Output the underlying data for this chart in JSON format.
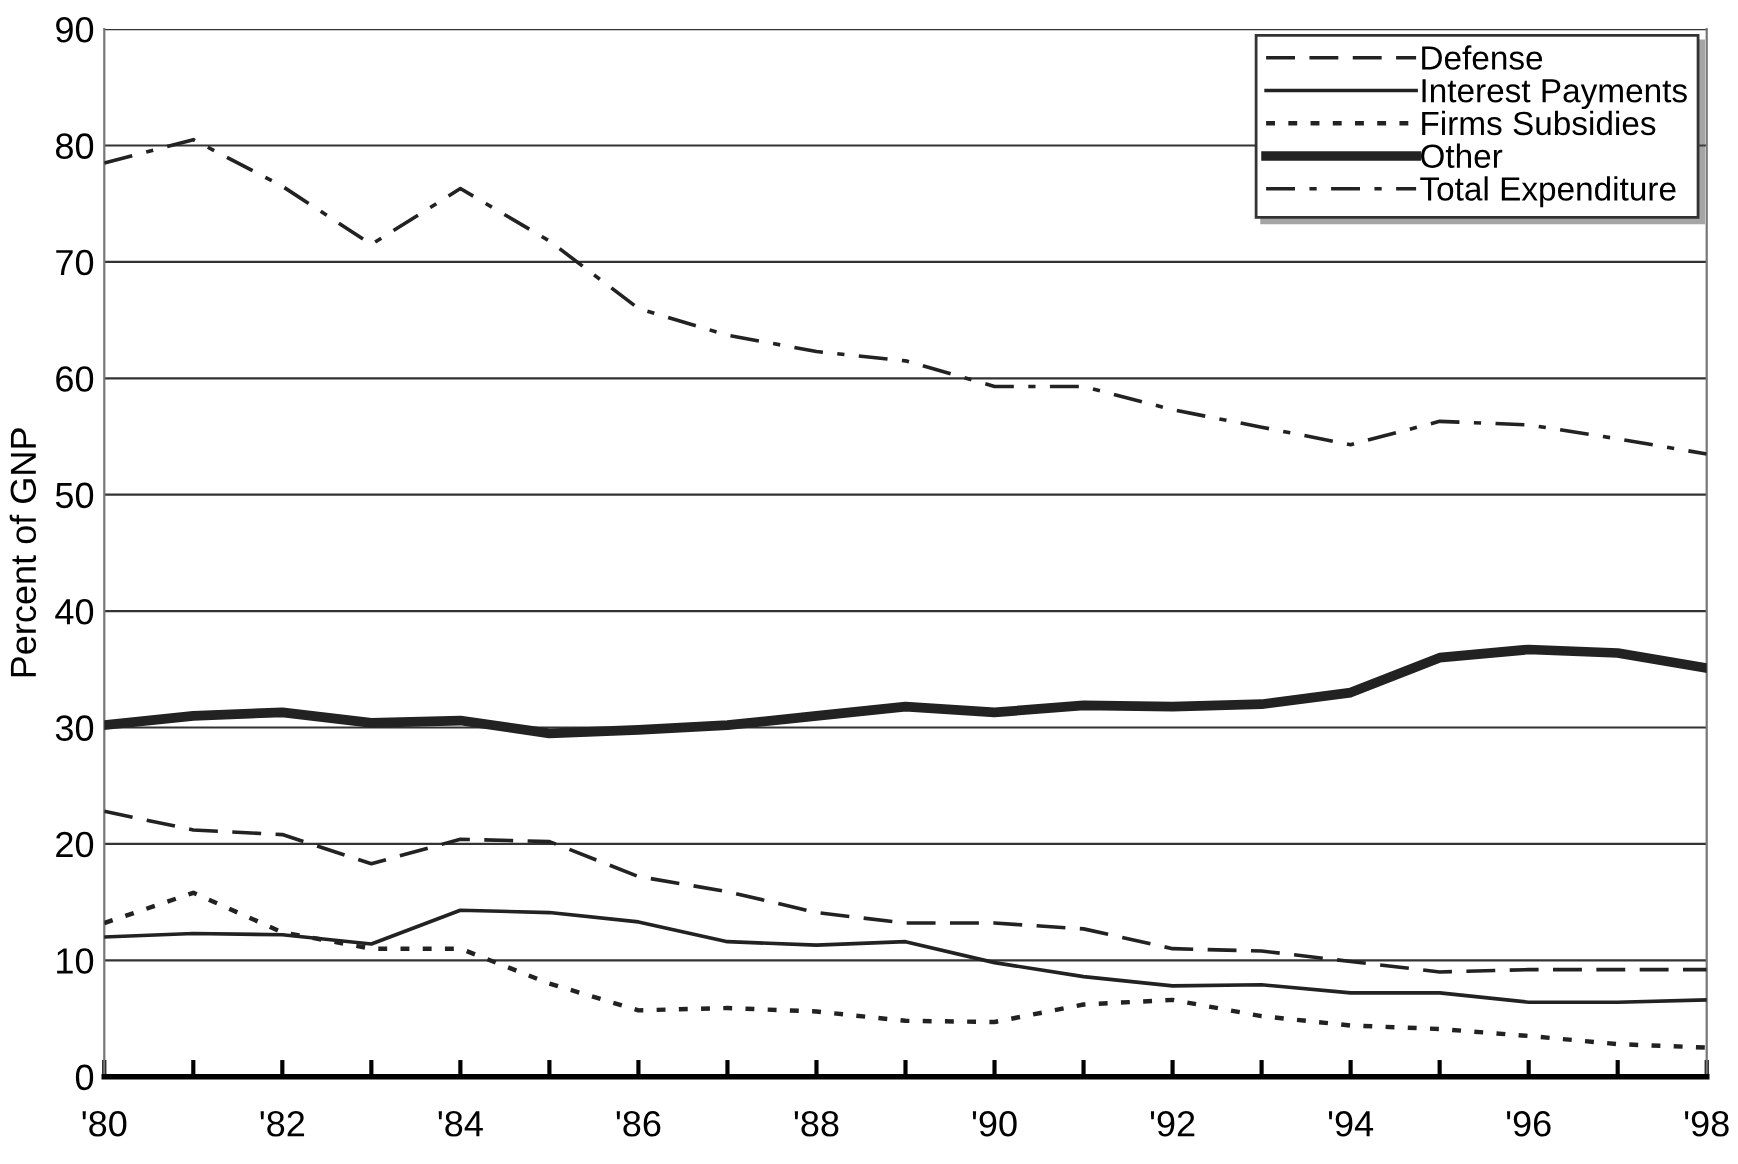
{
  "chart_data": {
    "type": "line",
    "ylabel": "Percent of GNP",
    "x": [
      1980,
      1981,
      1982,
      1983,
      1984,
      1985,
      1986,
      1987,
      1988,
      1989,
      1990,
      1991,
      1992,
      1993,
      1994,
      1995,
      1996,
      1997,
      1998
    ],
    "xlim": [
      1980,
      1998
    ],
    "xticks": [
      {
        "value": 1980,
        "label": "'80"
      },
      {
        "value": 1981,
        "label": null
      },
      {
        "value": 1982,
        "label": "'82"
      },
      {
        "value": 1983,
        "label": null
      },
      {
        "value": 1984,
        "label": "'84"
      },
      {
        "value": 1985,
        "label": null
      },
      {
        "value": 1986,
        "label": "'86"
      },
      {
        "value": 1987,
        "label": null
      },
      {
        "value": 1988,
        "label": "'88"
      },
      {
        "value": 1989,
        "label": null
      },
      {
        "value": 1990,
        "label": "'90"
      },
      {
        "value": 1991,
        "label": null
      },
      {
        "value": 1992,
        "label": "'92"
      },
      {
        "value": 1993,
        "label": null
      },
      {
        "value": 1994,
        "label": "'94"
      },
      {
        "value": 1995,
        "label": null
      },
      {
        "value": 1996,
        "label": "'96"
      },
      {
        "value": 1997,
        "label": null
      },
      {
        "value": 1998,
        "label": "'98"
      }
    ],
    "ylim": [
      0,
      90
    ],
    "yticks": [
      0,
      10,
      20,
      30,
      40,
      50,
      60,
      70,
      80,
      90
    ],
    "grid": "y",
    "legend": "top right",
    "marker": "none",
    "series": [
      {
        "name": "Defense",
        "color": "#222222",
        "line_style": "dashed",
        "values": [
          22.8,
          21.2,
          20.8,
          18.3,
          20.4,
          20.2,
          17.2,
          15.9,
          14.1,
          13.2,
          13.2,
          12.7,
          11.0,
          10.8,
          9.9,
          9.0,
          9.2,
          9.2,
          9.2
        ]
      },
      {
        "name": "Interest Payments",
        "color": "#222222",
        "line_style": "solid",
        "values": [
          12.0,
          12.3,
          12.2,
          11.4,
          14.3,
          14.1,
          13.3,
          11.6,
          11.3,
          11.6,
          9.8,
          8.6,
          7.8,
          7.9,
          7.2,
          7.2,
          6.4,
          6.4,
          6.6
        ]
      },
      {
        "name": "Firms Subsidies",
        "color": "#222222",
        "line_style": "dotted",
        "values": [
          13.2,
          15.8,
          12.4,
          11.0,
          11.0,
          8.0,
          5.7,
          5.9,
          5.6,
          4.8,
          4.7,
          6.2,
          6.6,
          5.2,
          4.4,
          4.1,
          3.5,
          2.8,
          2.5
        ]
      },
      {
        "name": "Other",
        "color": "#222222",
        "line_style": "solid",
        "values": [
          30.2,
          31.0,
          31.3,
          30.4,
          30.6,
          29.5,
          29.8,
          30.2,
          31.0,
          31.8,
          31.3,
          31.9,
          31.8,
          32.0,
          33.0,
          36.0,
          36.7,
          36.4,
          35.1
        ]
      },
      {
        "name": "Total Expenditure",
        "color": "#222222",
        "line_style": "dashed",
        "values": [
          78.5,
          80.5,
          76.5,
          71.5,
          76.3,
          71.8,
          66.0,
          63.7,
          62.3,
          61.5,
          59.3,
          59.3,
          57.3,
          55.8,
          54.3,
          56.3,
          56.0,
          54.8,
          53.5
        ]
      }
    ]
  }
}
